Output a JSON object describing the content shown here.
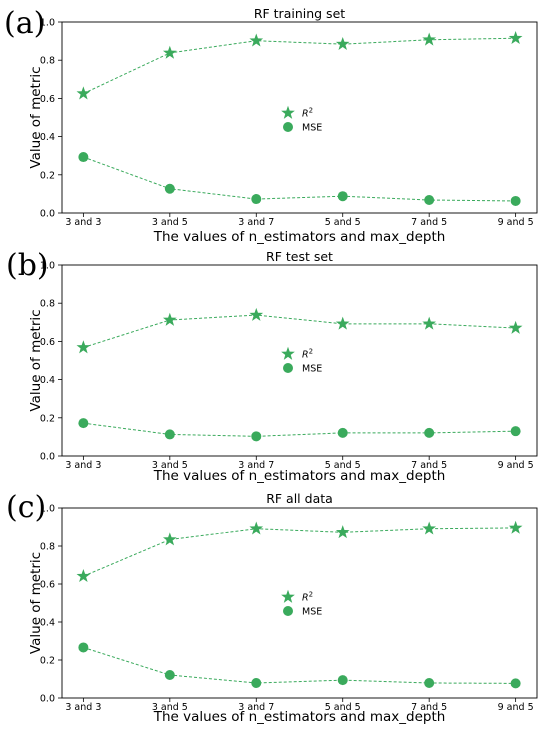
{
  "colors": {
    "series": "#3aaa5c",
    "axis": "#000000"
  },
  "chart_data": [
    {
      "type": "line",
      "panel_label": "(a)",
      "title": "RF training set",
      "xlabel": "The values of n_estimators and max_depth",
      "ylabel": "Value of metric",
      "categories": [
        "3 and 3",
        "3 and 5",
        "3 and 7",
        "5 and 5",
        "7 and 5",
        "9 and 5"
      ],
      "ylim": [
        0,
        1.0
      ],
      "yticks": [
        "0.0",
        "0.2",
        "0.4",
        "0.6",
        "0.8",
        "1.0"
      ],
      "legend_position": "center",
      "series": [
        {
          "name": "R2",
          "marker": "star",
          "values": [
            0.625,
            0.838,
            0.902,
            0.884,
            0.907,
            0.915
          ]
        },
        {
          "name": "MSE",
          "marker": "circle",
          "values": [
            0.293,
            0.127,
            0.073,
            0.088,
            0.068,
            0.063
          ]
        }
      ]
    },
    {
      "type": "line",
      "panel_label": "(b)",
      "title": "RF test set",
      "xlabel": "The values of n_estimators and max_depth",
      "ylabel": "Value of metric",
      "categories": [
        "3 and 3",
        "3 and 5",
        "3 and 7",
        "5 and 5",
        "7 and 5",
        "9 and 5"
      ],
      "ylim": [
        0,
        1.0
      ],
      "yticks": [
        "0.0",
        "0.2",
        "0.4",
        "0.6",
        "0.8",
        "1.0"
      ],
      "legend_position": "center",
      "series": [
        {
          "name": "R2",
          "marker": "star",
          "values": [
            0.568,
            0.712,
            0.738,
            0.692,
            0.692,
            0.67
          ]
        },
        {
          "name": "MSE",
          "marker": "circle",
          "values": [
            0.172,
            0.113,
            0.103,
            0.121,
            0.121,
            0.13
          ]
        }
      ]
    },
    {
      "type": "line",
      "panel_label": "(c)",
      "title": "RF all data",
      "xlabel": "The values of n_estimators and max_depth",
      "ylabel": "Value of metric",
      "categories": [
        "3 and 3",
        "3 and 5",
        "3 and 7",
        "5 and 5",
        "7 and 5",
        "9 and 5"
      ],
      "ylim": [
        0,
        1.0
      ],
      "yticks": [
        "0.0",
        "0.2",
        "0.4",
        "0.6",
        "0.8",
        "1.0"
      ],
      "legend_position": "center",
      "series": [
        {
          "name": "R2",
          "marker": "star",
          "values": [
            0.641,
            0.834,
            0.891,
            0.872,
            0.891,
            0.895
          ]
        },
        {
          "name": "MSE",
          "marker": "circle",
          "values": [
            0.266,
            0.121,
            0.079,
            0.094,
            0.079,
            0.077
          ]
        }
      ]
    }
  ]
}
